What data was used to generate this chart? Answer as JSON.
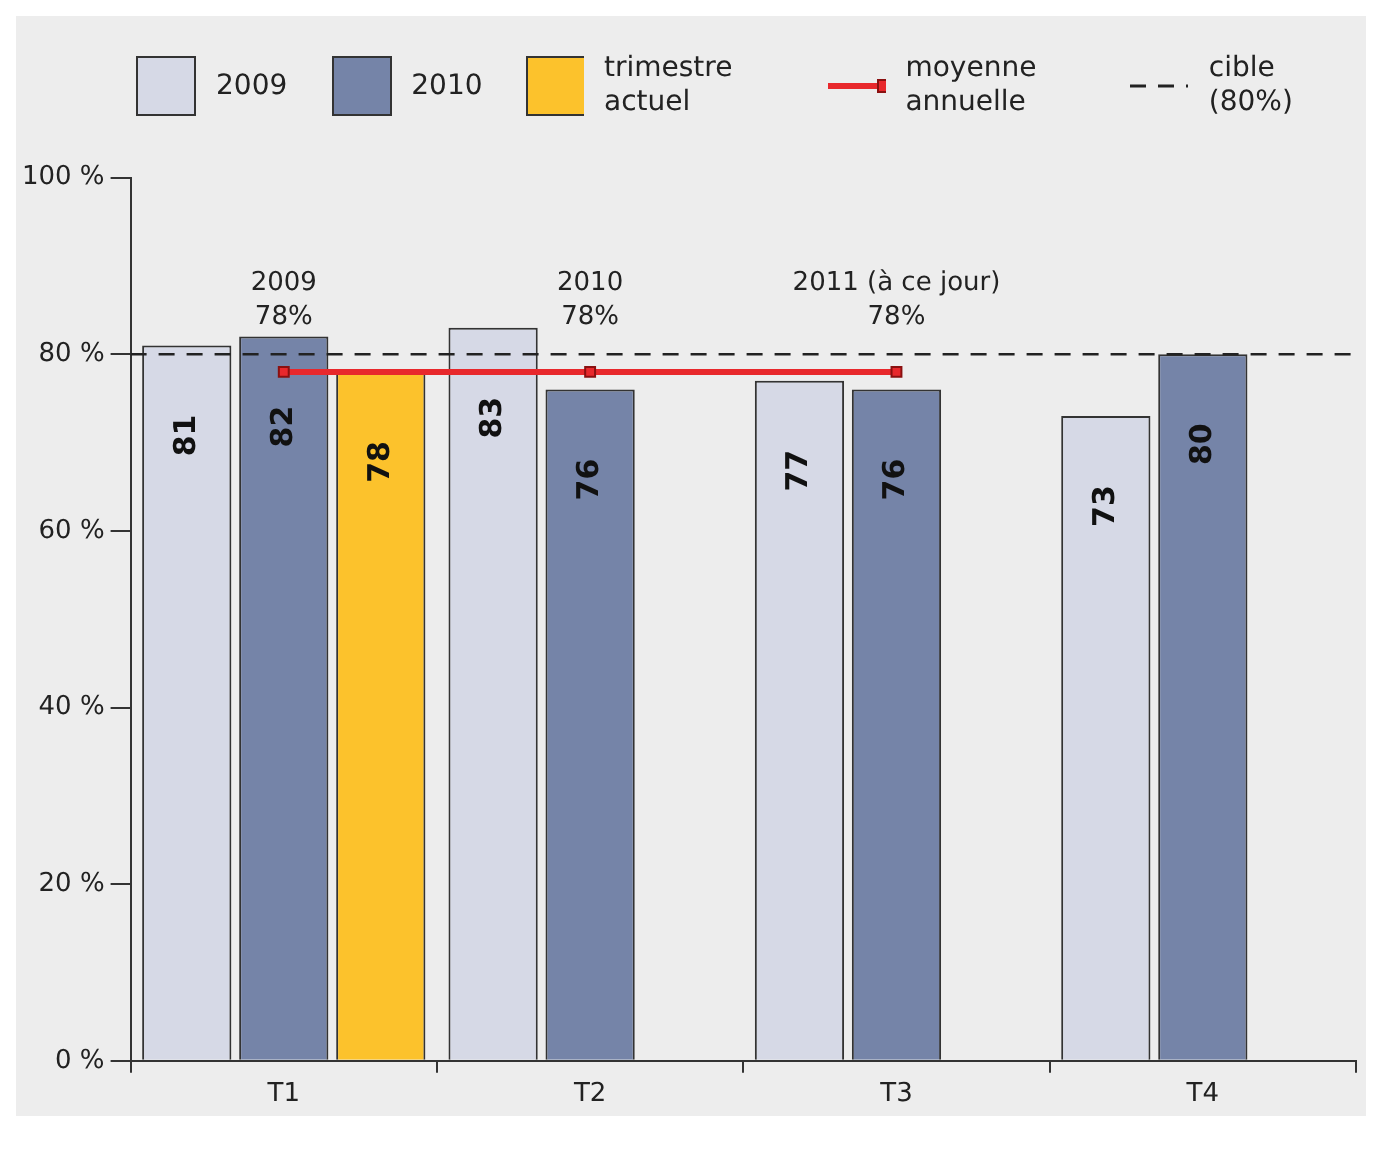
{
  "chart_data": {
    "type": "bar",
    "categories": [
      "T1",
      "T2",
      "T3",
      "T4"
    ],
    "series": [
      {
        "name": "2009",
        "color": "#d6d9e6",
        "values": [
          81,
          83,
          77,
          73
        ],
        "value_labels": [
          "81",
          "83",
          "77",
          "73"
        ]
      },
      {
        "name": "2010",
        "color": "#7584a8",
        "values": [
          82,
          76,
          76,
          80
        ],
        "value_labels": [
          "82",
          "76",
          "76",
          "80"
        ]
      },
      {
        "name": "trimestre actuel",
        "color": "#fcc22c",
        "values": [
          78,
          null,
          null,
          null
        ],
        "value_labels": [
          "78",
          null,
          null,
          null
        ]
      },
      {
        "name": "moyenne annuelle",
        "type": "line",
        "color": "#e8282c",
        "marker": "square",
        "values": [
          78,
          78,
          78,
          null
        ]
      }
    ],
    "ylim": [
      0,
      100
    ],
    "yticks": [
      {
        "value": 0,
        "label": "0 %"
      },
      {
        "value": 20,
        "label": "20 %"
      },
      {
        "value": 40,
        "label": "40 %"
      },
      {
        "value": 60,
        "label": "60 %"
      },
      {
        "value": 80,
        "label": "80 %"
      },
      {
        "value": 100,
        "label": "100 %"
      }
    ],
    "ref_lines": [
      {
        "axis": "y",
        "value": 80,
        "label": "cible (80%)",
        "color": "#222222",
        "line_style": "dashed"
      }
    ],
    "annotations": [
      {
        "text": "2009\n78%",
        "x": "T1",
        "y": 78
      },
      {
        "text": "2010\n78%",
        "x": "T2",
        "y": 78
      },
      {
        "text": "2011 (à ce jour)\n78%",
        "x": "T3",
        "y": 78
      }
    ],
    "grid": false,
    "legend": "top"
  }
}
